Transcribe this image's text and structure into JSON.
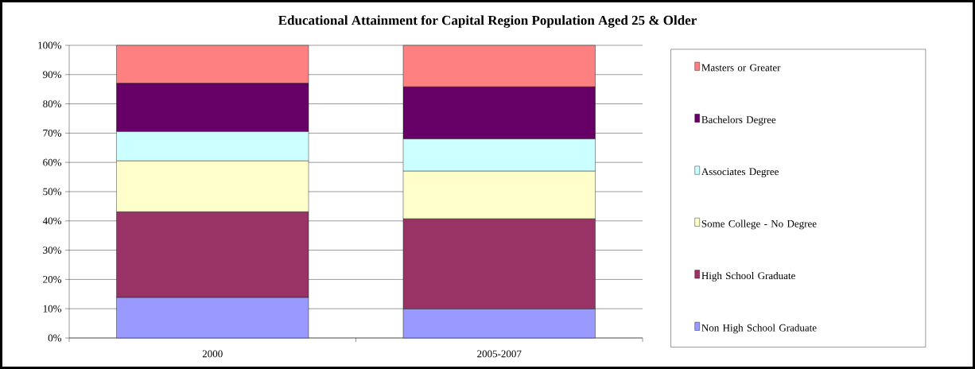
{
  "chart_data": {
    "type": "bar",
    "stacked": true,
    "title": "Educational Attainment for Capital Region Population Aged 25 & Older",
    "categories": [
      "2000",
      "2005-2007"
    ],
    "series": [
      {
        "name": "Non High School Graduate",
        "color": "#9999ff",
        "values": [
          13.8,
          9.9
        ]
      },
      {
        "name": "High School Graduate",
        "color": "#993366",
        "values": [
          29.3,
          30.8
        ]
      },
      {
        "name": "Some College -  No Degree",
        "color": "#ffffcc",
        "values": [
          17.4,
          16.3
        ]
      },
      {
        "name": "Associates Degree",
        "color": "#ccffff",
        "values": [
          10.0,
          11.0
        ]
      },
      {
        "name": "Bachelors Degree",
        "color": "#660066",
        "values": [
          16.5,
          17.8
        ]
      },
      {
        "name": "Masters or Greater",
        "color": "#ff8080",
        "values": [
          13.0,
          14.2
        ]
      }
    ],
    "ylim": [
      0,
      100
    ],
    "yticks": [
      {
        "value": 0,
        "label": "0%"
      },
      {
        "value": 10,
        "label": "10%"
      },
      {
        "value": 20,
        "label": "20%"
      },
      {
        "value": 30,
        "label": "30%"
      },
      {
        "value": 40,
        "label": "40%"
      },
      {
        "value": 50,
        "label": "50%"
      },
      {
        "value": 60,
        "label": "60%"
      },
      {
        "value": 70,
        "label": "70%"
      },
      {
        "value": 80,
        "label": "80%"
      },
      {
        "value": 90,
        "label": "90%"
      },
      {
        "value": 100,
        "label": "100%"
      }
    ],
    "grid": "y",
    "legend": "right"
  }
}
